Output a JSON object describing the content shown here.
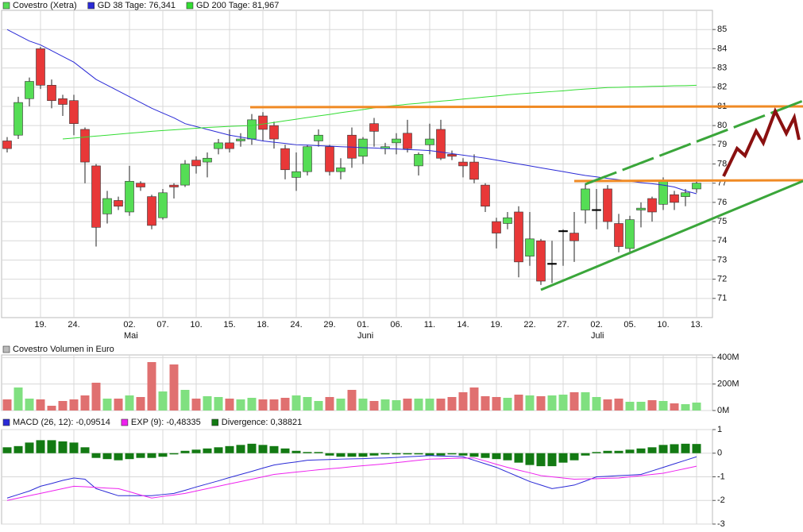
{
  "chart_data": [
    {
      "type": "candlestick",
      "name": "Covestro (Xetra)",
      "up_color": "#55dd55",
      "down_color": "#e83838",
      "categories": [
        null,
        null,
        null,
        "19.",
        null,
        null,
        "24.",
        null,
        null,
        null,
        null,
        "02.",
        null,
        null,
        "07.",
        null,
        null,
        "10.",
        null,
        null,
        "15.",
        null,
        null,
        "18.",
        null,
        null,
        "24.",
        null,
        null,
        "29.",
        null,
        null,
        "01.",
        null,
        null,
        "06.",
        null,
        null,
        "11.",
        null,
        null,
        "14.",
        null,
        null,
        "19.",
        null,
        null,
        "22.",
        null,
        null,
        "27.",
        null,
        null,
        "02.",
        null,
        null,
        "05.",
        null,
        null,
        "10.",
        null,
        null,
        "13."
      ],
      "months": [
        {
          "label": "Mai",
          "index": 11
        },
        {
          "label": "Juni",
          "index": 32
        },
        {
          "label": "Juli",
          "index": 53
        }
      ],
      "open": [
        79.2,
        79.5,
        81.4,
        84.0,
        82.1,
        81.4,
        81.3,
        79.8,
        77.9,
        75.4,
        76.1,
        75.5,
        77.0,
        76.3,
        75.2,
        76.9,
        76.9,
        78.2,
        78.1,
        78.8,
        79.1,
        79.2,
        79.3,
        80.5,
        80.0,
        78.8,
        77.3,
        77.6,
        79.2,
        78.9,
        77.6,
        79.5,
        78.4,
        80.1,
        78.8,
        79.1,
        79.6,
        77.9,
        79.0,
        79.8,
        78.5,
        78.1,
        78.1,
        76.9,
        75.0,
        74.9,
        75.5,
        73.2,
        74.0,
        72.8,
        74.5,
        74.4,
        75.6,
        75.6,
        76.7,
        74.9,
        73.6,
        75.6,
        76.2,
        75.9,
        76.4,
        76.3,
        76.7
      ],
      "close": [
        78.8,
        81.2,
        82.3,
        82.1,
        81.3,
        81.1,
        80.1,
        78.1,
        74.7,
        76.2,
        75.8,
        77.1,
        76.8,
        74.8,
        76.5,
        76.8,
        78.0,
        77.9,
        78.3,
        79.1,
        78.8,
        79.3,
        80.3,
        79.8,
        79.3,
        77.7,
        77.6,
        78.9,
        79.5,
        77.6,
        77.8,
        78.3,
        79.3,
        79.7,
        78.9,
        79.3,
        78.8,
        78.5,
        79.3,
        78.3,
        78.4,
        77.9,
        77.2,
        75.8,
        74.4,
        75.2,
        72.9,
        74.1,
        71.9,
        72.8,
        74.5,
        74.0,
        76.7,
        75.6,
        75.0,
        73.7,
        75.1,
        75.7,
        75.5,
        77.1,
        76.0,
        76.5,
        77.0
      ],
      "high": [
        79.4,
        81.5,
        82.5,
        84.1,
        82.4,
        81.6,
        81.6,
        79.9,
        78.0,
        76.6,
        76.3,
        77.9,
        77.1,
        76.4,
        76.7,
        77.0,
        78.2,
        78.4,
        78.6,
        79.3,
        79.8,
        79.6,
        80.6,
        80.7,
        80.2,
        79.0,
        78.6,
        79.0,
        79.8,
        79.0,
        78.3,
        79.9,
        79.4,
        80.4,
        79.1,
        79.6,
        80.3,
        78.6,
        80.1,
        80.3,
        78.7,
        78.3,
        78.5,
        77.0,
        75.2,
        75.5,
        75.8,
        75.5,
        74.1,
        74.0,
        74.6,
        75.5,
        77.0,
        76.7,
        76.9,
        75.4,
        75.3,
        76.0,
        76.3,
        77.3,
        76.6,
        76.7,
        77.1
      ],
      "low": [
        78.6,
        79.3,
        81.0,
        81.9,
        80.9,
        80.5,
        79.5,
        77.0,
        73.7,
        74.9,
        75.6,
        75.3,
        76.6,
        74.6,
        75.1,
        76.2,
        76.8,
        77.5,
        77.3,
        78.5,
        78.6,
        78.9,
        79.0,
        79.2,
        78.8,
        77.2,
        76.6,
        77.4,
        78.9,
        77.4,
        77.2,
        77.8,
        78.0,
        78.9,
        78.5,
        78.5,
        78.6,
        77.4,
        78.5,
        78.2,
        78.2,
        77.3,
        77.0,
        75.5,
        73.6,
        74.6,
        72.1,
        72.7,
        71.7,
        71.8,
        72.7,
        72.9,
        74.9,
        74.6,
        74.6,
        73.4,
        73.3,
        74.7,
        75.0,
        75.6,
        75.6,
        75.8,
        76.5
      ],
      "series": [
        {
          "name": "GD 38 Tage: 76,341",
          "color": "#2a2ad6",
          "values": [
            85.0,
            84.7,
            84.4,
            84.2,
            83.9,
            83.6,
            83.3,
            82.85,
            82.4,
            82.1,
            81.8,
            81.5,
            81.2,
            80.9,
            80.65,
            80.4,
            80.1,
            79.95,
            79.8,
            79.65,
            79.5,
            79.4,
            79.3,
            79.2,
            79.13,
            79.07,
            79.0,
            78.98,
            78.95,
            78.93,
            78.9,
            78.88,
            78.85,
            78.83,
            78.8,
            78.78,
            78.75,
            78.73,
            78.7,
            78.62,
            78.54,
            78.46,
            78.38,
            78.3,
            78.2,
            78.1,
            78.0,
            77.9,
            77.8,
            77.7,
            77.6,
            77.5,
            77.4,
            77.33,
            77.25,
            77.18,
            77.1,
            77.03,
            76.97,
            76.9,
            76.8,
            76.6,
            76.45
          ]
        },
        {
          "name": "GD 200 Tage: 81,967",
          "color": "#33dd33",
          "values": [
            null,
            null,
            null,
            null,
            null,
            79.3,
            79.35,
            79.4,
            79.45,
            79.5,
            79.55,
            79.6,
            79.65,
            79.7,
            79.74,
            79.78,
            79.82,
            79.86,
            79.9,
            79.93,
            79.96,
            79.98,
            80.0,
            80.08,
            80.16,
            80.25,
            80.33,
            80.42,
            80.5,
            80.58,
            80.67,
            80.75,
            80.83,
            80.92,
            81.0,
            81.05,
            81.11,
            81.16,
            81.22,
            81.27,
            81.32,
            81.38,
            81.43,
            81.49,
            81.54,
            81.6,
            81.65,
            81.69,
            81.73,
            81.77,
            81.81,
            81.86,
            81.9,
            81.94,
            81.98,
            81.99,
            82.01,
            82.02,
            82.04,
            82.05,
            82.07,
            82.08,
            82.1
          ]
        }
      ],
      "ylim": [
        70,
        86
      ],
      "yticks": [
        71,
        72,
        73,
        74,
        75,
        76,
        77,
        78,
        79,
        80,
        81,
        82,
        83,
        84,
        85
      ],
      "grid": true
    },
    {
      "type": "bar",
      "title": "Covestro Volumen in Euro",
      "up_color": "#80e080",
      "down_color": "#e07070",
      "values": [
        84000000,
        174000000,
        90000000,
        84000000,
        36000000,
        72000000,
        84000000,
        114000000,
        210000000,
        90000000,
        90000000,
        114000000,
        102000000,
        366000000,
        144000000,
        348000000,
        156000000,
        90000000,
        108000000,
        102000000,
        90000000,
        84000000,
        96000000,
        84000000,
        84000000,
        96000000,
        114000000,
        102000000,
        72000000,
        102000000,
        90000000,
        156000000,
        90000000,
        72000000,
        84000000,
        78000000,
        90000000,
        90000000,
        90000000,
        90000000,
        102000000,
        138000000,
        174000000,
        108000000,
        102000000,
        96000000,
        120000000,
        114000000,
        108000000,
        114000000,
        120000000,
        138000000,
        138000000,
        102000000,
        84000000,
        90000000,
        66000000,
        66000000,
        78000000,
        72000000,
        54000000,
        48000000,
        60000000
      ],
      "ylim": [
        0,
        420000000
      ],
      "yticks": [
        {
          "value": 400000000,
          "label": "400M"
        },
        {
          "value": 200000000,
          "label": "200M"
        },
        {
          "value": 0,
          "label": "0M"
        }
      ],
      "grid": true
    },
    {
      "type": "macd",
      "series": [
        {
          "name": "MACD (26, 12): -0,09514",
          "color": "#2a2ad6",
          "kind": "line",
          "values": [
            -1.9,
            -1.75,
            -1.6,
            -1.4,
            -1.28,
            -1.15,
            -1.05,
            -1.1,
            -1.5,
            -1.65,
            -1.8,
            -1.8,
            -1.8,
            -1.8,
            -1.75,
            -1.7,
            -1.57,
            -1.43,
            -1.3,
            -1.17,
            -1.03,
            -0.9,
            -0.77,
            -0.63,
            -0.5,
            -0.43,
            -0.37,
            -0.3,
            -0.28,
            -0.27,
            -0.25,
            -0.24,
            -0.23,
            -0.21,
            -0.2,
            -0.18,
            -0.15,
            -0.13,
            -0.1,
            -0.12,
            -0.13,
            -0.15,
            -0.3,
            -0.45,
            -0.6,
            -0.8,
            -1.0,
            -1.2,
            -1.35,
            -1.5,
            -1.43,
            -1.35,
            -1.18,
            -1.0,
            -0.98,
            -0.95,
            -0.93,
            -0.9,
            -0.75,
            -0.6,
            -0.45,
            -0.3,
            -0.15
          ]
        },
        {
          "name": "EXP (9): -0,48335",
          "color": "#ee22ee",
          "kind": "line",
          "values": [
            -2.0,
            -1.9,
            -1.8,
            -1.7,
            -1.6,
            -1.5,
            -1.4,
            -1.42,
            -1.45,
            -1.48,
            -1.5,
            -1.63,
            -1.77,
            -1.9,
            -1.83,
            -1.77,
            -1.7,
            -1.6,
            -1.5,
            -1.4,
            -1.3,
            -1.2,
            -1.1,
            -1.0,
            -0.9,
            -0.85,
            -0.8,
            -0.75,
            -0.7,
            -0.66,
            -0.62,
            -0.57,
            -0.53,
            -0.49,
            -0.45,
            -0.4,
            -0.35,
            -0.3,
            -0.25,
            -0.24,
            -0.22,
            -0.21,
            -0.2,
            -0.33,
            -0.47,
            -0.6,
            -0.72,
            -0.83,
            -0.95,
            -1.0,
            -1.05,
            -1.1,
            -1.09,
            -1.08,
            -1.06,
            -1.05,
            -1.0,
            -0.95,
            -0.9,
            -0.85,
            -0.75,
            -0.65,
            -0.55
          ]
        },
        {
          "name": "Divergence: 0,38821",
          "color": "#137a13",
          "kind": "bar",
          "values": [
            0.25,
            0.3,
            0.45,
            0.55,
            0.55,
            0.5,
            0.45,
            0.25,
            -0.2,
            -0.25,
            -0.3,
            -0.25,
            -0.2,
            -0.2,
            -0.15,
            -0.05,
            0.1,
            0.15,
            0.2,
            0.25,
            0.3,
            0.35,
            0.4,
            0.35,
            0.3,
            0.2,
            0.1,
            0.05,
            0.05,
            -0.1,
            -0.15,
            -0.15,
            -0.15,
            -0.1,
            -0.05,
            -0.05,
            -0.05,
            -0.05,
            -0.1,
            -0.1,
            -0.05,
            -0.1,
            -0.15,
            -0.2,
            -0.25,
            -0.3,
            -0.4,
            -0.5,
            -0.55,
            -0.55,
            -0.4,
            -0.3,
            -0.1,
            0.05,
            0.1,
            0.1,
            0.15,
            0.2,
            0.25,
            0.35,
            0.38,
            0.4,
            0.39
          ]
        }
      ],
      "ylim": [
        -3,
        1
      ],
      "yticks": [
        1,
        0,
        -1,
        -2,
        -3
      ],
      "grid": true
    }
  ]
}
